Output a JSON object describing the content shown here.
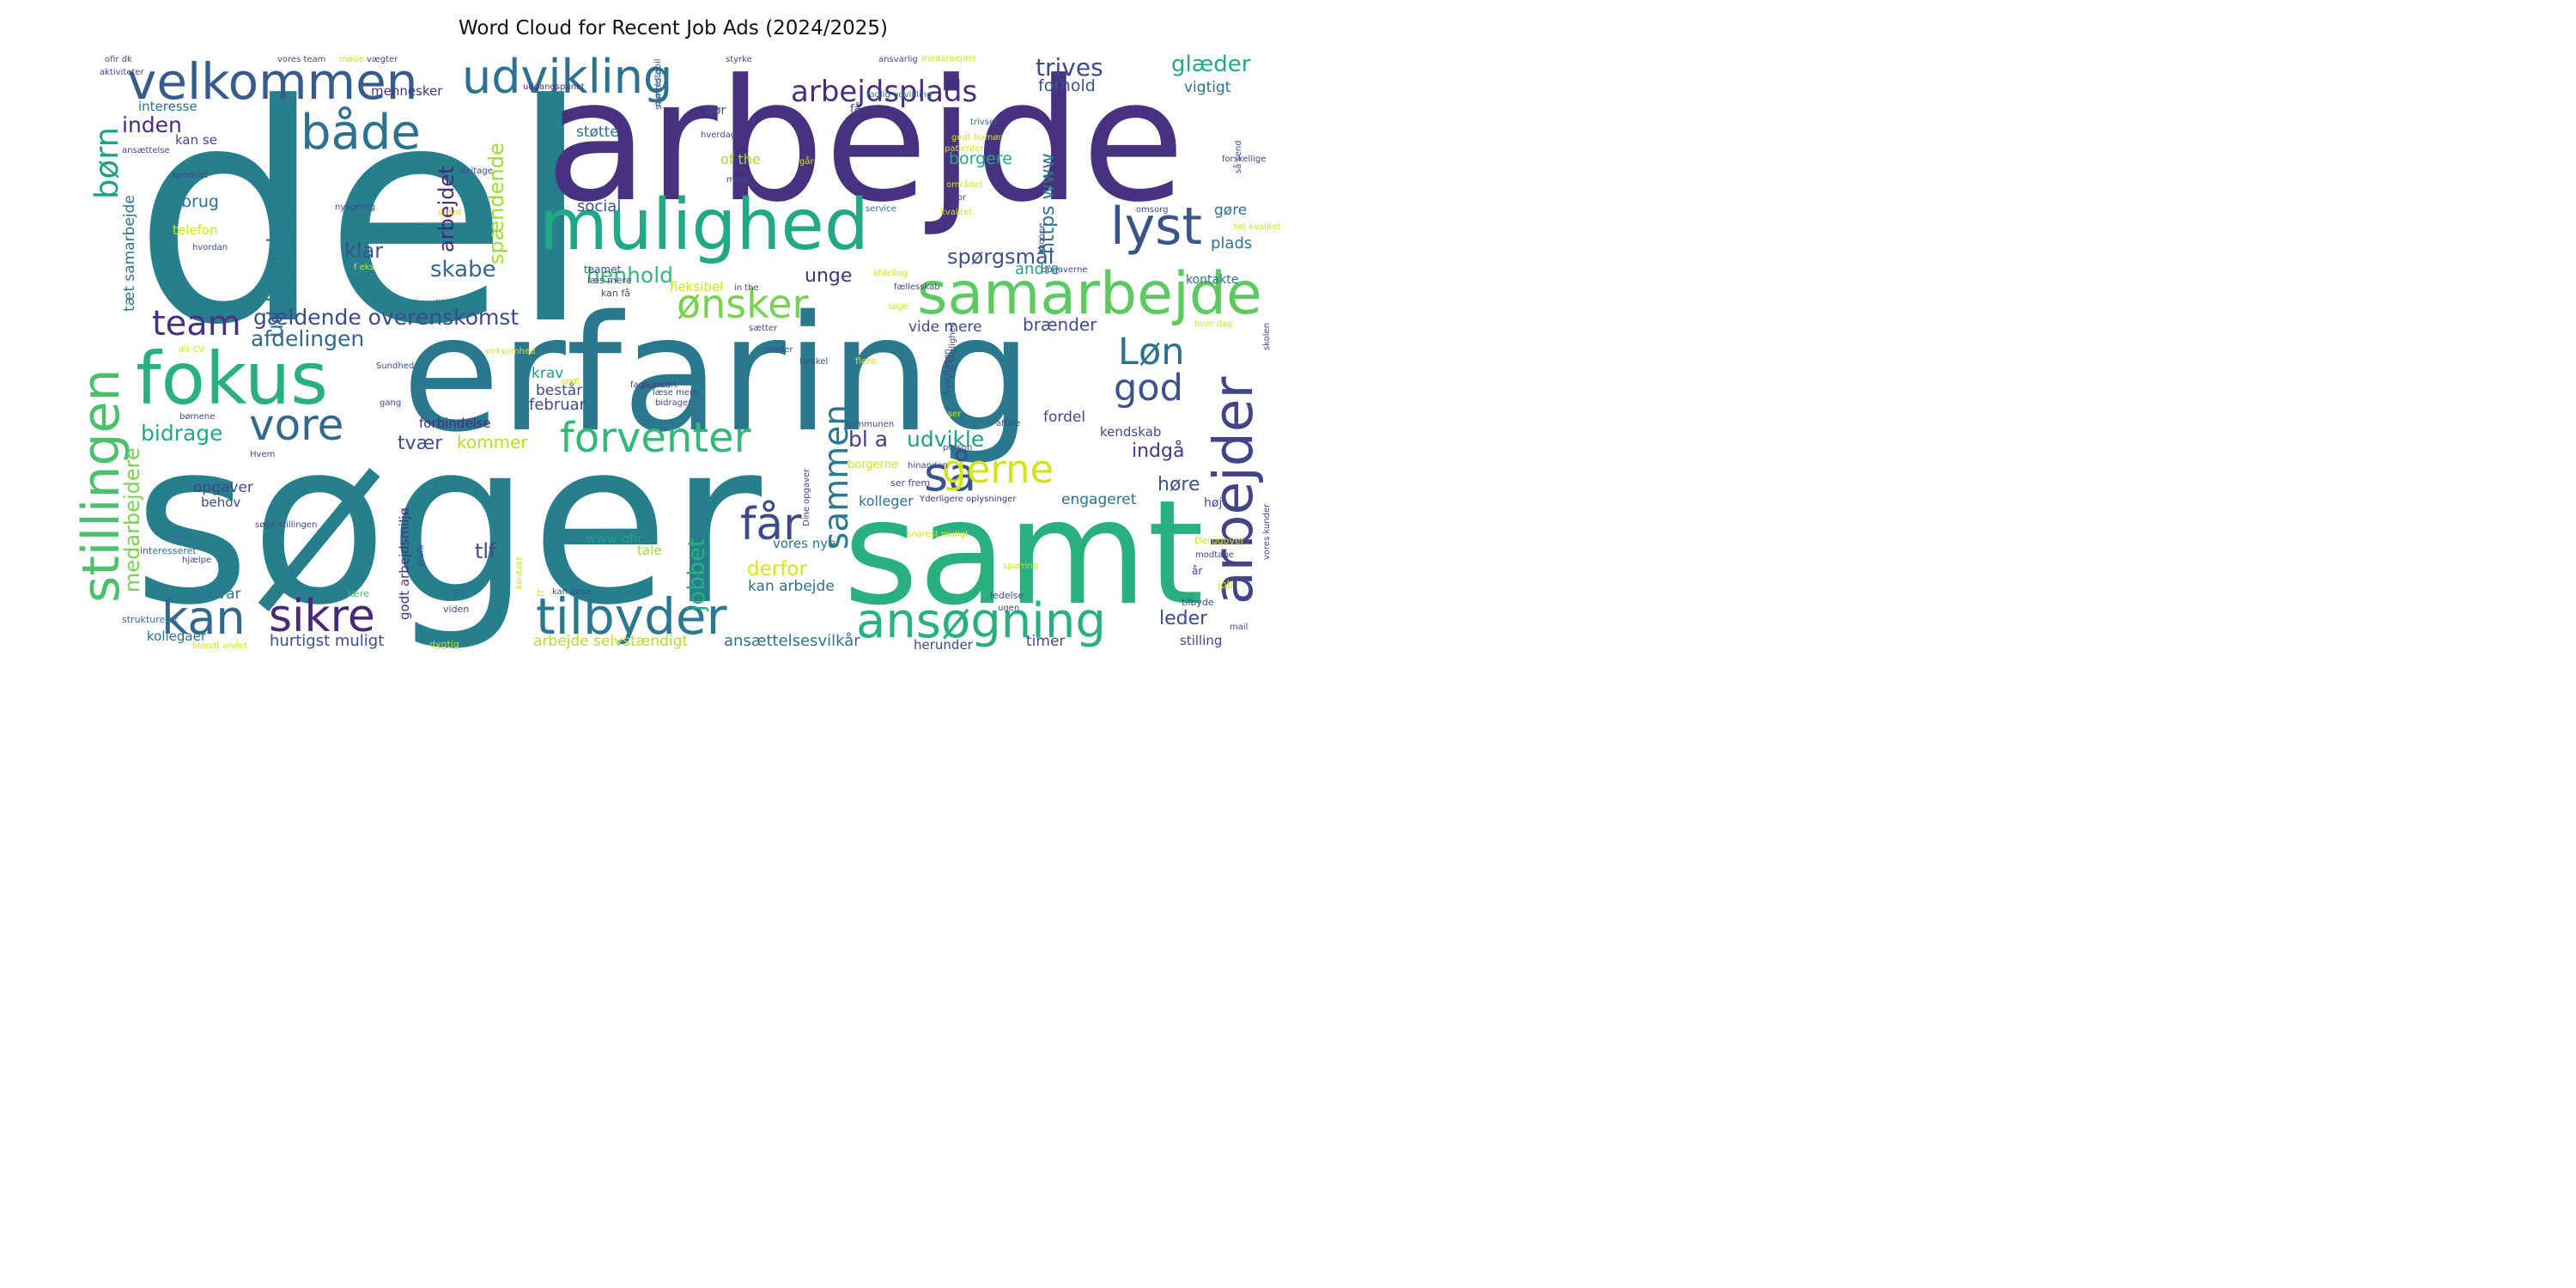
{
  "chart_data": {
    "type": "wordcloud",
    "title": "Word Cloud for Recent Job Ads (2024/2025)",
    "palette": [
      "#440154",
      "#46327e",
      "#365c8d",
      "#277f8e",
      "#1fa187",
      "#4ac16d",
      "#a0da39",
      "#fde725"
    ],
    "words": [
      {
        "text": "del",
        "weight": 100,
        "color": "#277f8e"
      },
      {
        "text": "søger",
        "weight": 95,
        "color": "#277f8e"
      },
      {
        "text": "arbejde",
        "weight": 83,
        "color": "#46327e"
      },
      {
        "text": "erfaring",
        "weight": 79,
        "color": "#2a788e"
      },
      {
        "text": "samt",
        "weight": 72,
        "color": "#2ab07f"
      },
      {
        "text": "mulighed",
        "weight": 47,
        "color": "#22a884"
      },
      {
        "text": "fokus",
        "weight": 42,
        "color": "#2ab07f"
      },
      {
        "text": "samarbejde",
        "weight": 36,
        "color": "#5ec962"
      },
      {
        "text": "arbejder",
        "weight": 36,
        "color": "#414487"
      },
      {
        "text": "ansøgning",
        "weight": 35,
        "color": "#2ab07f"
      },
      {
        "text": "tilbyder",
        "weight": 35,
        "color": "#2a788e"
      },
      {
        "text": "stillingen",
        "weight": 34,
        "color": "#4ac16d"
      },
      {
        "text": "velkommen",
        "weight": 33,
        "color": "#365c8d"
      },
      {
        "text": "lyst",
        "weight": 32,
        "color": "#3b528b"
      },
      {
        "text": "både",
        "weight": 31,
        "color": "#2c728e"
      },
      {
        "text": "kan",
        "weight": 31,
        "color": "#31688e"
      },
      {
        "text": "sikre",
        "weight": 30,
        "color": "#482878"
      },
      {
        "text": "udvikling",
        "weight": 28,
        "color": "#2c728e"
      },
      {
        "text": "så",
        "weight": 27,
        "color": "#3b528b"
      },
      {
        "text": "vore",
        "weight": 27,
        "color": "#31688e"
      },
      {
        "text": "forventer",
        "weight": 26,
        "color": "#35b779"
      },
      {
        "text": "ønsker",
        "weight": 26,
        "color": "#7ad151"
      },
      {
        "text": "gerne",
        "weight": 26,
        "color": "#d2e21b"
      },
      {
        "text": "får",
        "weight": 26,
        "color": "#3e4a89"
      },
      {
        "text": "Løn",
        "weight": 25,
        "color": "#2c728e"
      },
      {
        "text": "god",
        "weight": 25,
        "color": "#3b528b"
      },
      {
        "text": "sammen",
        "weight": 24,
        "color": "#2a788e"
      },
      {
        "text": "team",
        "weight": 24,
        "color": "#46327e"
      },
      {
        "text": "børn",
        "weight": 22,
        "color": "#1fa187"
      },
      {
        "text": "arbejdsplads",
        "weight": 18,
        "color": "#472d7b"
      },
      {
        "text": "trives",
        "weight": 16,
        "color": "#3e4a89"
      },
      {
        "text": "glæder",
        "weight": 15,
        "color": "#22a884"
      },
      {
        "text": "medarbejdere",
        "weight": 15,
        "color": "#7ad151"
      },
      {
        "text": "uddannelse",
        "weight": 15,
        "color": "#2a788e"
      },
      {
        "text": "arbejdet",
        "weight": 15,
        "color": "#482878"
      },
      {
        "text": "spændende",
        "weight": 15,
        "color": "#a0da39"
      },
      {
        "text": "gældende overenskomst",
        "weight": 15,
        "color": "#3e4a89"
      },
      {
        "text": "jobbet",
        "weight": 15,
        "color": "#2ab07f"
      },
      {
        "text": "inden",
        "weight": 14,
        "color": "#472d7b"
      },
      {
        "text": "https www",
        "weight": 14,
        "color": "#2c728e"
      },
      {
        "text": "klar",
        "weight": 14,
        "color": "#3b528b"
      },
      {
        "text": "skabe",
        "weight": 14,
        "color": "#31688e"
      },
      {
        "text": "henhold",
        "weight": 14,
        "color": "#35b779"
      },
      {
        "text": "afdelingen",
        "weight": 14,
        "color": "#31688e"
      },
      {
        "text": "spørgsmål",
        "weight": 14,
        "color": "#3b528b"
      },
      {
        "text": "bidrage",
        "weight": 14,
        "color": "#22a884"
      },
      {
        "text": "udvikle",
        "weight": 14,
        "color": "#1f9e89"
      },
      {
        "text": "bl a",
        "weight": 14,
        "color": "#433e85"
      },
      {
        "text": "tlf",
        "weight": 14,
        "color": "#3e4a89"
      },
      {
        "text": "derfor",
        "weight": 13,
        "color": "#d8e219"
      },
      {
        "text": "leder",
        "weight": 13,
        "color": "#3e4a89"
      },
      {
        "text": "indgå",
        "weight": 13,
        "color": "#443a83"
      },
      {
        "text": "høre",
        "weight": 13,
        "color": "#3b528b"
      },
      {
        "text": "kommer",
        "weight": 12,
        "color": "#b5de2b"
      },
      {
        "text": "tvær",
        "weight": 12,
        "color": "#3e4a89"
      },
      {
        "text": "unge",
        "weight": 12,
        "color": "#46327e"
      },
      {
        "text": "brænder",
        "weight": 12,
        "color": "#3e4a89"
      },
      {
        "text": "tæt samarbejde",
        "weight": 10,
        "color": "#2c728e"
      },
      {
        "text": "forhold",
        "weight": 10,
        "color": "#3b528b"
      },
      {
        "text": "vigtigt",
        "weight": 9,
        "color": "#2c728e"
      },
      {
        "text": "borgere",
        "weight": 10,
        "color": "#22a884"
      },
      {
        "text": "social",
        "weight": 10,
        "color": "#3b528b"
      },
      {
        "text": "brug",
        "weight": 10,
        "color": "#2c728e"
      },
      {
        "text": "gøre",
        "weight": 10,
        "color": "#2c728e"
      },
      {
        "text": "plads",
        "weight": 10,
        "color": "#2c728e"
      },
      {
        "text": "andre",
        "weight": 10,
        "color": "#1fa187"
      },
      {
        "text": "vide mere",
        "weight": 10,
        "color": "#3e4a89"
      },
      {
        "text": "krav",
        "weight": 10,
        "color": "#1fa187"
      },
      {
        "text": "består",
        "weight": 10,
        "color": "#3e4a89"
      },
      {
        "text": "februar",
        "weight": 10,
        "color": "#3e4a89"
      },
      {
        "text": "forbindelse",
        "weight": 9,
        "color": "#472d7b"
      },
      {
        "text": "opgaver",
        "weight": 10,
        "color": "#3e4a89"
      },
      {
        "text": "behov",
        "weight": 9,
        "color": "#3e4a89"
      },
      {
        "text": "mennesker",
        "weight": 9,
        "color": "#46327e"
      },
      {
        "text": "interesse",
        "weight": 9,
        "color": "#2c728e"
      },
      {
        "text": "kan se",
        "weight": 9,
        "color": "#3e4a89"
      },
      {
        "text": "telefon",
        "weight": 9,
        "color": "#d2e21b"
      },
      {
        "text": "gør",
        "weight": 8,
        "color": "#3e4a89"
      },
      {
        "text": "støtte",
        "weight": 9,
        "color": "#2c728e"
      },
      {
        "text": "of the",
        "weight": 9,
        "color": "#a0da39"
      },
      {
        "text": "fordel",
        "weight": 9,
        "color": "#3e4a89"
      },
      {
        "text": "kontakte",
        "weight": 8,
        "color": "#2c728e"
      },
      {
        "text": "kendskab",
        "weight": 8,
        "color": "#3e4a89"
      },
      {
        "text": "engageret",
        "weight": 9,
        "color": "#2c728e"
      },
      {
        "text": "kolleger",
        "weight": 9,
        "color": "#2c728e"
      },
      {
        "text": "højt",
        "weight": 8,
        "color": "#3e4a89"
      },
      {
        "text": "www ofir",
        "weight": 8,
        "color": "#1fa187"
      },
      {
        "text": "tale",
        "weight": 8,
        "color": "#a0da39"
      },
      {
        "text": "vores nye",
        "weight": 8,
        "color": "#2c728e"
      },
      {
        "text": "kan arbejde",
        "weight": 9,
        "color": "#2c728e"
      },
      {
        "text": "ansvar",
        "weight": 9,
        "color": "#2c728e"
      },
      {
        "text": "hurtigst muligt",
        "weight": 9,
        "color": "#3e4a89"
      },
      {
        "text": "arbejde selvstændigt",
        "weight": 9,
        "color": "#b5de2b"
      },
      {
        "text": "ansættelsesvilkår",
        "weight": 9,
        "color": "#2c728e"
      },
      {
        "text": "herunder",
        "weight": 8,
        "color": "#3e4a89"
      },
      {
        "text": "timer",
        "weight": 8,
        "color": "#3e4a89"
      },
      {
        "text": "stilling",
        "weight": 8,
        "color": "#3e4a89"
      },
      {
        "text": "kollegaer",
        "weight": 8,
        "color": "#2c728e"
      },
      {
        "text": "fleksibel",
        "weight": 7,
        "color": "#d2e21b"
      },
      {
        "text": "godt arbejdsmiljø",
        "weight": 6,
        "color": "#46327e"
      },
      {
        "text": "job",
        "weight": 6,
        "color": "#d2e21b"
      },
      {
        "text": "år",
        "weight": 6,
        "color": "#3e4a89"
      },
      {
        "text": "teamet",
        "weight": 6,
        "color": "#3e4a89"
      },
      {
        "text": "læs mere",
        "weight": 5,
        "color": "#3e4a89"
      },
      {
        "text": "kan få",
        "weight": 5,
        "color": "#3e4a89"
      },
      {
        "text": "få",
        "weight": 6,
        "color": "#3e4a89"
      },
      {
        "text": "ved",
        "weight": 6,
        "color": "#2c728e"
      },
      {
        "text": "viden",
        "weight": 5,
        "color": "#3e4a89"
      },
      {
        "text": "lære",
        "weight": 5,
        "color": "#4ac16d"
      },
      {
        "text": "måske",
        "weight": 5,
        "color": "#2c728e"
      },
      {
        "text": "interesseret",
        "weight": 5,
        "color": "#2c728e"
      },
      {
        "text": "struktureret",
        "weight": 5,
        "color": "#2c728e"
      },
      {
        "text": "dygtig",
        "weight": 5,
        "color": "#d2e21b"
      },
      {
        "text": "blandt andet",
        "weight": 5,
        "color": "#d2e21b"
      },
      {
        "text": "ledelse",
        "weight": 5,
        "color": "#3e4a89"
      },
      {
        "text": "ugen",
        "weight": 5,
        "color": "#3e4a89"
      },
      {
        "text": "tilbyde",
        "weight": 5,
        "color": "#3e4a89"
      },
      {
        "text": "mail",
        "weight": 5,
        "color": "#3e4a89"
      },
      {
        "text": "Derudover",
        "weight": 5,
        "color": "#d2e21b"
      },
      {
        "text": "modtage",
        "weight": 5,
        "color": "#3e4a89"
      },
      {
        "text": "sparring",
        "weight": 5,
        "color": "#d2e21b"
      },
      {
        "text": "snarest muligt",
        "weight": 5,
        "color": "#d2e21b"
      },
      {
        "text": "Yderligere oplysninger",
        "weight": 5,
        "color": "#46327e"
      },
      {
        "text": "ser frem",
        "weight": 5,
        "color": "#3e4a89"
      },
      {
        "text": "hinanden",
        "weight": 5,
        "color": "#3e4a89"
      },
      {
        "text": "kommunen",
        "weight": 5,
        "color": "#3e4a89"
      },
      {
        "text": "ser",
        "weight": 5,
        "color": "#d2e21b"
      },
      {
        "text": "aftale",
        "weight": 5,
        "color": "#3e4a89"
      },
      {
        "text": "person",
        "weight": 5,
        "color": "#3e4a89"
      },
      {
        "text": "borgerne",
        "weight": 6,
        "color": "#d2e21b"
      },
      {
        "text": "forskel",
        "weight": 5,
        "color": "#3e4a89"
      },
      {
        "text": "flere",
        "weight": 5,
        "color": "#d2e21b"
      },
      {
        "text": "hver dag",
        "weight": 5,
        "color": "#d2e21b"
      },
      {
        "text": "mødestabil",
        "weight": 4,
        "color": "#3e4a89"
      },
      {
        "text": "samtidig",
        "weight": 5,
        "color": "#2c728e"
      },
      {
        "text": "hverdag",
        "weight": 5,
        "color": "#3e4a89"
      },
      {
        "text": "godt humør",
        "weight": 5,
        "color": "#d2e21b"
      },
      {
        "text": "patienter",
        "weight": 5,
        "color": "#d2e21b"
      },
      {
        "text": "trivsel",
        "weight": 5,
        "color": "#2c728e"
      },
      {
        "text": "faglig udvikling",
        "weight": 5,
        "color": "#2c728e"
      },
      {
        "text": "udgangspunkt",
        "weight": 5,
        "color": "#46327e"
      },
      {
        "text": "ansættelse",
        "weight": 5,
        "color": "#3e4a89"
      },
      {
        "text": "kørekort",
        "weight": 5,
        "color": "#3e4a89"
      },
      {
        "text": "deltage",
        "weight": 5,
        "color": "#3e4a89"
      },
      {
        "text": "går",
        "weight": 5,
        "color": "#d2e21b"
      },
      {
        "text": "mere",
        "weight": 5,
        "color": "#3e4a89"
      },
      {
        "text": "service",
        "weight": 5,
        "color": "#2c728e"
      },
      {
        "text": "nysgerrig",
        "weight": 5,
        "color": "#3e4a89"
      },
      {
        "text": "ansat",
        "weight": 5,
        "color": "#d2e21b"
      },
      {
        "text": "hvordan",
        "weight": 5,
        "color": "#3e4a89"
      },
      {
        "text": "f eks",
        "weight": 5,
        "color": "#d2e21b"
      },
      {
        "text": "altid",
        "weight": 5,
        "color": "#2c728e"
      },
      {
        "text": "afdeling",
        "weight": 5,
        "color": "#d2e21b"
      },
      {
        "text": "in the",
        "weight": 5,
        "color": "#3e4a89"
      },
      {
        "text": "fællesskab",
        "weight": 5,
        "color": "#3e4a89"
      },
      {
        "text": "søge",
        "weight": 5,
        "color": "#d2e21b"
      },
      {
        "text": "sætter",
        "weight": 5,
        "color": "#3e4a89"
      },
      {
        "text": "møder",
        "weight": 5,
        "color": "#3e4a89"
      },
      {
        "text": "dit CV",
        "weight": 5,
        "color": "#d2e21b"
      },
      {
        "text": "virksomhed",
        "weight": 5,
        "color": "#d2e21b"
      },
      {
        "text": "Sundhed",
        "weight": 5,
        "color": "#3e4a89"
      },
      {
        "text": "godt",
        "weight": 5,
        "color": "#d2e21b"
      },
      {
        "text": "primært",
        "weight": 5,
        "color": "#3e4a89"
      },
      {
        "text": "faglighed",
        "weight": 5,
        "color": "#3e4a89"
      },
      {
        "text": "læse mere",
        "weight": 5,
        "color": "#3e4a89"
      },
      {
        "text": "bidrager",
        "weight": 5,
        "color": "#3e4a89"
      },
      {
        "text": "gang",
        "weight": 5,
        "color": "#3e4a89"
      },
      {
        "text": "børnene",
        "weight": 5,
        "color": "#3e4a89"
      },
      {
        "text": "Hvem",
        "weight": 5,
        "color": "#3e4a89"
      },
      {
        "text": "hjælpe",
        "weight": 5,
        "color": "#3e4a89"
      },
      {
        "text": "søge stillingen",
        "weight": 5,
        "color": "#3e4a89"
      },
      {
        "text": "kan læse",
        "weight": 5,
        "color": "#3e4a89"
      },
      {
        "text": "kontakt",
        "weight": 5,
        "color": "#d2e21b"
      },
      {
        "text": "IT",
        "weight": 5,
        "color": "#d2e21b"
      },
      {
        "text": "profil",
        "weight": 5,
        "color": "#3e4a89"
      },
      {
        "text": "Dine opgaver",
        "weight": 4,
        "color": "#3e4a89"
      },
      {
        "text": "medarbejder",
        "weight": 4,
        "color": "#d2e21b"
      },
      {
        "text": "høj faglighed",
        "weight": 4,
        "color": "#3e4a89"
      },
      {
        "text": "hverdagen",
        "weight": 4,
        "color": "#3e4a89"
      },
      {
        "text": "vores kunder",
        "weight": 5,
        "color": "#3e4a89"
      },
      {
        "text": "skolen",
        "weight": 5,
        "color": "#3e4a89"
      },
      {
        "text": "så send",
        "weight": 4,
        "color": "#3e4a89"
      },
      {
        "text": "forskellige",
        "weight": 4,
        "color": "#3e4a89"
      },
      {
        "text": "omsorg",
        "weight": 4,
        "color": "#3e4a89"
      },
      {
        "text": "høj kvalitet",
        "weight": 4,
        "color": "#d2e21b"
      },
      {
        "text": "opgaverne",
        "weight": 4,
        "color": "#3e4a89"
      },
      {
        "text": "området",
        "weight": 5,
        "color": "#d2e21b"
      },
      {
        "text": "tror",
        "weight": 4,
        "color": "#3e4a89"
      },
      {
        "text": "kvalitet",
        "weight": 5,
        "color": "#d2e21b"
      },
      {
        "text": "konne",
        "weight": 4,
        "color": "#3e4a89"
      },
      {
        "text": "styrke",
        "weight": 5,
        "color": "#3e4a89"
      },
      {
        "text": "ansvarlig",
        "weight": 5,
        "color": "#3e4a89"
      },
      {
        "text": "ofir dk",
        "weight": 5,
        "color": "#3e4a89"
      },
      {
        "text": "aktiviteter",
        "weight": 5,
        "color": "#3e4a89"
      },
      {
        "text": "vores team",
        "weight": 5,
        "color": "#3e4a89"
      },
      {
        "text": "møde",
        "weight": 5,
        "color": "#d2e21b"
      },
      {
        "text": "vægter",
        "weight": 5,
        "color": "#3e4a89"
      },
      {
        "text": "will be",
        "weight": 5,
        "color": "#3e4a89"
      },
      {
        "text": "via linket",
        "weight": 5,
        "color": "#3e4a89"
      },
      {
        "text": "understøtte",
        "weight": 5,
        "color": "#d2e21b"
      }
    ]
  }
}
